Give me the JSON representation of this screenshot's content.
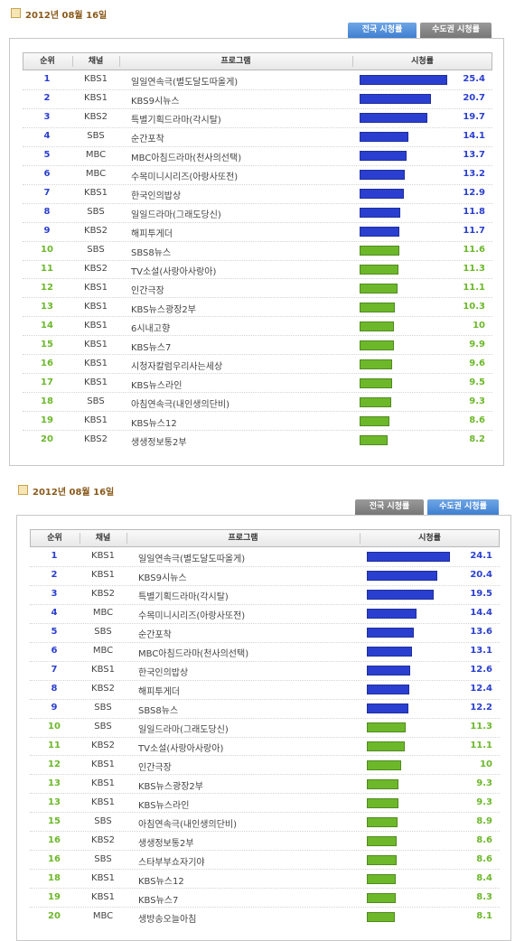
{
  "sections": [
    {
      "date": "2012년 08월 16일",
      "tabs": [
        {
          "label": "전국 시청률",
          "active": true
        },
        {
          "label": "수도권 시청률",
          "active": false
        }
      ],
      "headers": [
        "순위",
        "채널",
        "프로그램",
        "시청률"
      ],
      "rows": [
        [
          1,
          "KBS1",
          "일일연속극(별도달도따올게)",
          25.4
        ],
        [
          2,
          "KBS1",
          "KBS9시뉴스",
          20.7
        ],
        [
          3,
          "KBS2",
          "특별기획드라마(각시탈)",
          19.7
        ],
        [
          4,
          "SBS",
          "순간포착",
          14.1
        ],
        [
          5,
          "MBC",
          "MBC아침드라마(천사의선택)",
          13.7
        ],
        [
          6,
          "MBC",
          "수목미니시리즈(아랑사또전)",
          13.2
        ],
        [
          7,
          "KBS1",
          "한국인의밥상",
          12.9
        ],
        [
          8,
          "SBS",
          "일일드라마(그래도당신)",
          11.8
        ],
        [
          9,
          "KBS2",
          "해피투게더",
          11.7
        ],
        [
          10,
          "SBS",
          "SBS8뉴스",
          11.6
        ],
        [
          11,
          "KBS2",
          "TV소설(사랑아사랑아)",
          11.3
        ],
        [
          12,
          "KBS1",
          "인간극장",
          11.1
        ],
        [
          13,
          "KBS1",
          "KBS뉴스광장2부",
          10.3
        ],
        [
          14,
          "KBS1",
          "6시내고향",
          10
        ],
        [
          15,
          "KBS1",
          "KBS뉴스7",
          9.9
        ],
        [
          16,
          "KBS1",
          "시청자칼럼우리사는세상",
          9.6
        ],
        [
          17,
          "KBS1",
          "KBS뉴스라인",
          9.5
        ],
        [
          18,
          "SBS",
          "아침연속극(내인생의단비)",
          9.3
        ],
        [
          19,
          "KBS1",
          "KBS뉴스12",
          8.6
        ],
        [
          20,
          "KBS2",
          "생생정보통2부",
          8.2
        ]
      ]
    },
    {
      "date": "2012년 08월 16일",
      "tabs": [
        {
          "label": "전국 시청률",
          "active": false
        },
        {
          "label": "수도권 시청률",
          "active": true
        }
      ],
      "headers": [
        "순위",
        "채널",
        "프로그램",
        "시청률"
      ],
      "rows": [
        [
          1,
          "KBS1",
          "일일연속극(별도달도따올게)",
          24.1
        ],
        [
          2,
          "KBS1",
          "KBS9시뉴스",
          20.4
        ],
        [
          3,
          "KBS2",
          "특별기획드라마(각시탈)",
          19.5
        ],
        [
          4,
          "MBC",
          "수목미니시리즈(아랑사또전)",
          14.4
        ],
        [
          5,
          "SBS",
          "순간포착",
          13.6
        ],
        [
          6,
          "MBC",
          "MBC아침드라마(천사의선택)",
          13.1
        ],
        [
          7,
          "KBS1",
          "한국인의밥상",
          12.6
        ],
        [
          8,
          "KBS2",
          "해피투게더",
          12.4
        ],
        [
          9,
          "SBS",
          "SBS8뉴스",
          12.2
        ],
        [
          10,
          "SBS",
          "일일드라마(그래도당신)",
          11.3
        ],
        [
          11,
          "KBS2",
          "TV소설(사랑아사랑아)",
          11.1
        ],
        [
          12,
          "KBS1",
          "인간극장",
          10
        ],
        [
          13,
          "KBS1",
          "KBS뉴스광장2부",
          9.3
        ],
        [
          13,
          "KBS1",
          "KBS뉴스라인",
          9.3
        ],
        [
          15,
          "SBS",
          "아침연속극(내인생의단비)",
          8.9
        ],
        [
          16,
          "KBS2",
          "생생정보통2부",
          8.6
        ],
        [
          16,
          "SBS",
          "스타부부쇼자기야",
          8.6
        ],
        [
          18,
          "KBS1",
          "KBS뉴스12",
          8.4
        ],
        [
          19,
          "KBS1",
          "KBS뉴스7",
          8.3
        ],
        [
          20,
          "MBC",
          "생방송오늘아침",
          8.1
        ]
      ]
    }
  ],
  "colors": {
    "top": "#2a3fd0",
    "rest": "#6cb82a"
  },
  "highlight_rows": 9
}
